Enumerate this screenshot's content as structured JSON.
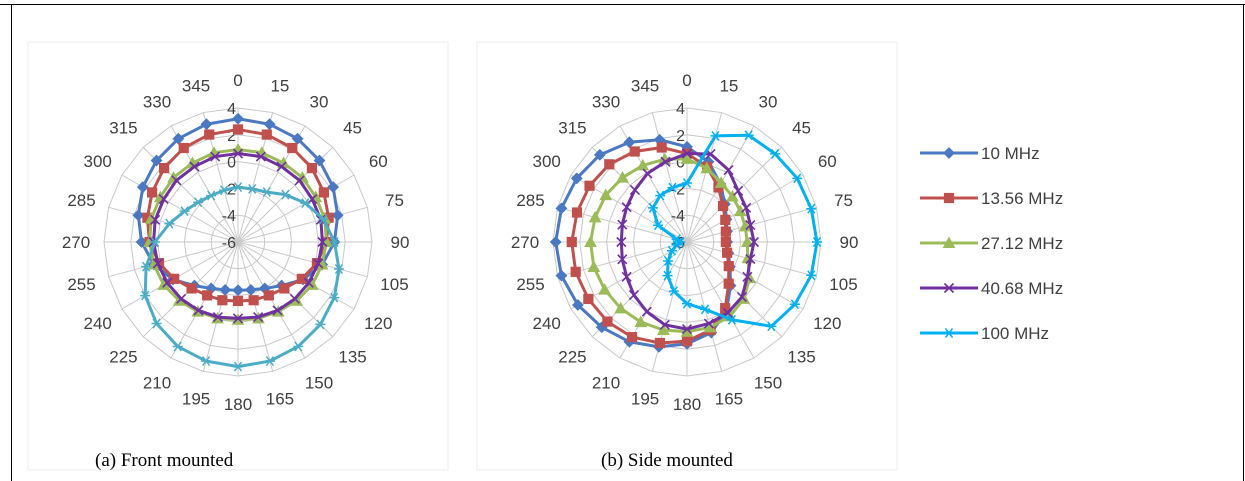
{
  "captions": [
    "(a) Front mounted",
    "(b) Side mounted"
  ],
  "chart_data": [
    {
      "type": "radar",
      "caption": "(a) Front mounted",
      "angles_deg": [
        0,
        15,
        30,
        45,
        60,
        75,
        90,
        105,
        120,
        135,
        150,
        165,
        180,
        195,
        210,
        225,
        240,
        255,
        270,
        285,
        300,
        315,
        330,
        345
      ],
      "angle_labels": [
        "0",
        "15",
        "30",
        "45",
        "60",
        "75",
        "90",
        "105",
        "120",
        "135",
        "150",
        "165",
        "180",
        "195",
        "210",
        "225",
        "240",
        "255",
        "270",
        "285",
        "300",
        "315",
        "330",
        "345"
      ],
      "r_ticks": [
        4,
        2,
        0,
        -2,
        -4,
        -6
      ],
      "r_tick_labels": [
        "4",
        "2",
        "0",
        "-2",
        "-4",
        "-6"
      ],
      "rlim": [
        -6,
        4
      ],
      "grid": true,
      "series": [
        {
          "name": "10 MHz",
          "color": "#4a78c2",
          "marker": "diamond",
          "values": [
            3.2,
            3.1,
            2.9,
            2.6,
            2.2,
            1.7,
            1.2,
            0.5,
            -0.4,
            -1.4,
            -2.0,
            -2.3,
            -2.4,
            -2.3,
            -2.0,
            -1.4,
            -0.4,
            0.5,
            1.2,
            1.7,
            2.2,
            2.6,
            2.9,
            3.1
          ]
        },
        {
          "name": "13.56 MHz",
          "color": "#c0504d",
          "marker": "square",
          "values": [
            2.4,
            2.3,
            2.1,
            1.8,
            1.4,
            1.0,
            0.6,
            0.1,
            -0.5,
            -1.1,
            -1.4,
            -1.5,
            -1.6,
            -1.5,
            -1.4,
            -1.1,
            -0.5,
            0.1,
            0.6,
            1.0,
            1.4,
            1.8,
            2.1,
            2.3
          ]
        },
        {
          "name": "27.12 MHz",
          "color": "#9bbb59",
          "marker": "triangle",
          "values": [
            0.9,
            0.9,
            0.8,
            0.8,
            0.7,
            0.7,
            0.6,
            0.5,
            0.4,
            0.2,
            0.0,
            -0.1,
            -0.2,
            -0.1,
            0.0,
            0.2,
            0.4,
            0.5,
            0.6,
            0.7,
            0.7,
            0.8,
            0.8,
            0.9
          ]
        },
        {
          "name": "40.68 MHz",
          "color": "#7030a0",
          "marker": "x",
          "values": [
            0.6,
            0.6,
            0.5,
            0.5,
            0.4,
            0.4,
            0.3,
            0.2,
            0.1,
            0.0,
            -0.1,
            -0.2,
            -0.3,
            -0.2,
            -0.1,
            0.0,
            0.1,
            0.2,
            0.3,
            0.4,
            0.4,
            0.5,
            0.5,
            0.6
          ]
        },
        {
          "name": "100 MHz",
          "color": "#4bacc6",
          "marker": "star",
          "values": [
            -1.9,
            -1.9,
            -1.7,
            -1.0,
            -0.2,
            0.6,
            1.2,
            1.8,
            2.3,
            2.7,
            3.0,
            3.2,
            3.3,
            3.2,
            3.0,
            2.6,
            2.0,
            1.1,
            0.2,
            -0.7,
            -1.4,
            -1.8,
            -2.0,
            -2.0
          ]
        }
      ]
    },
    {
      "type": "radar",
      "caption": "(b) Side mounted",
      "angles_deg": [
        0,
        15,
        30,
        45,
        60,
        75,
        90,
        105,
        120,
        135,
        150,
        165,
        180,
        195,
        210,
        225,
        240,
        255,
        270,
        285,
        300,
        315,
        330,
        345
      ],
      "angle_labels": [
        "0",
        "15",
        "30",
        "45",
        "60",
        "75",
        "90",
        "105",
        "120",
        "135",
        "150",
        "165",
        "180",
        "195",
        "210",
        "225",
        "240",
        "255",
        "270",
        "285",
        "300",
        "315",
        "330",
        "345"
      ],
      "r_ticks": [
        4,
        2,
        0,
        -2,
        -4,
        -6
      ],
      "r_tick_labels": [
        "4",
        "2",
        "0",
        "-2",
        "-4",
        "-6"
      ],
      "rlim": [
        -6,
        4
      ],
      "grid": true,
      "legend": {
        "position": "right",
        "entries": [
          "10 MHz",
          "13.56 MHz",
          "27.12 MHz",
          "40.68 MHz",
          "100 MHz"
        ]
      },
      "series": [
        {
          "name": "10 MHz",
          "color": "#4a78c2",
          "marker": "diamond",
          "values": [
            1.1,
            0.2,
            -1.0,
            -2.0,
            -2.6,
            -2.9,
            -3.0,
            -2.8,
            -2.3,
            -1.4,
            -0.1,
            1.0,
            1.6,
            2.1,
            2.6,
            3.0,
            3.4,
            3.7,
            3.8,
            3.7,
            3.5,
            3.2,
            2.6,
            1.9
          ]
        },
        {
          "name": "13.56 MHz",
          "color": "#c0504d",
          "marker": "square",
          "values": [
            0.6,
            -0.2,
            -1.3,
            -2.2,
            -2.7,
            -3.0,
            -3.1,
            -2.9,
            -2.4,
            -1.6,
            -0.3,
            0.8,
            1.4,
            1.8,
            2.2,
            2.4,
            2.5,
            2.6,
            2.6,
            2.5,
            2.4,
            2.2,
            1.8,
            1.3
          ]
        },
        {
          "name": "27.12 MHz",
          "color": "#9bbb59",
          "marker": "triangle",
          "values": [
            0.2,
            -0.3,
            -0.9,
            -1.2,
            -1.4,
            -1.5,
            -1.5,
            -1.3,
            -0.6,
            0.0,
            0.4,
            0.6,
            0.7,
            0.8,
            0.9,
            1.0,
            1.1,
            1.2,
            1.2,
            1.1,
            1.0,
            0.8,
            0.6,
            0.4
          ]
        },
        {
          "name": "40.68 MHz",
          "color": "#7030a0",
          "marker": "x",
          "values": [
            0.6,
            0.8,
            0.2,
            -0.6,
            -0.9,
            -1.1,
            -1.0,
            -1.1,
            -0.8,
            -0.2,
            0.1,
            0.3,
            0.5,
            0.4,
            0.0,
            -0.4,
            -0.8,
            -1.0,
            -1.1,
            -1.0,
            -0.8,
            -0.5,
            -0.1,
            0.2
          ]
        },
        {
          "name": "100 MHz",
          "color": "#00b0f0",
          "marker": "star",
          "values": [
            -1.6,
            2.2,
            3.2,
            3.3,
            3.5,
            3.6,
            3.7,
            3.6,
            3.3,
            2.9,
            0.7,
            -0.8,
            -1.4,
            -2.2,
            -3.1,
            -4.0,
            -4.7,
            -5.2,
            -5.5,
            -5.2,
            -3.5,
            -2.4,
            -2.0,
            -1.8
          ]
        }
      ]
    }
  ]
}
